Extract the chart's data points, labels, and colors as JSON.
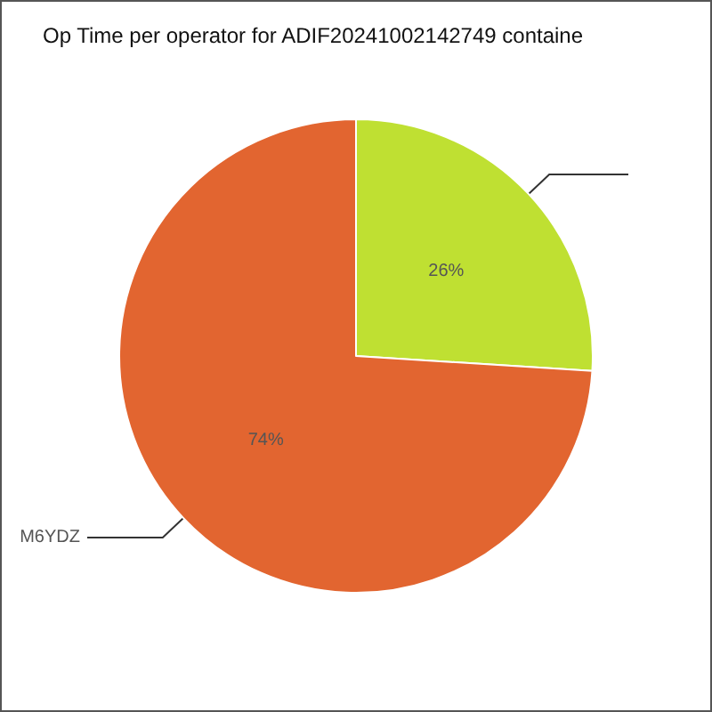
{
  "chart_data": {
    "type": "pie",
    "title": "Op Time per operator for ADIF20241002142749 containe",
    "categories": [
      null,
      "M6YDZ"
    ],
    "values": [
      26,
      74
    ],
    "colors": [
      "#bfe032",
      "#e26530"
    ],
    "value_labels": [
      "26%",
      "74%"
    ],
    "legend": false
  }
}
